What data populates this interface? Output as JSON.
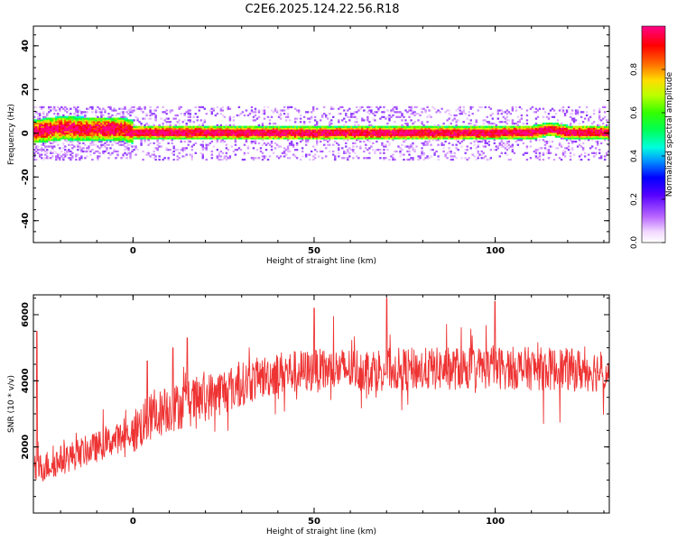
{
  "title": "C2E6.2025.124.22.56.R18",
  "chart_data": [
    {
      "type": "heatmap",
      "xlabel": "Height of straight line (km)",
      "ylabel": "Frequency (Hz)",
      "xlim": [
        -27.5,
        131.5
      ],
      "ylim": [
        -50,
        49
      ],
      "xticks": [
        0,
        50,
        100
      ],
      "yticks": [
        -40,
        -20,
        0,
        20,
        40
      ],
      "band": {
        "center_freq_hz": [
          {
            "x": -27,
            "f": 1.0
          },
          {
            "x": -20,
            "f": 2.5
          },
          {
            "x": -12,
            "f": 2.0
          },
          {
            "x": -3,
            "f": 2.0
          },
          {
            "x": 0,
            "f": 0.5
          },
          {
            "x": 10,
            "f": 0.5
          },
          {
            "x": 30,
            "f": 0.3
          },
          {
            "x": 50,
            "f": 0.2
          },
          {
            "x": 70,
            "f": 0.3
          },
          {
            "x": 90,
            "f": 0.2
          },
          {
            "x": 110,
            "f": 0.5
          },
          {
            "x": 115,
            "f": 2.0
          },
          {
            "x": 120,
            "f": 0.5
          },
          {
            "x": 131,
            "f": 0.5
          }
        ],
        "high_amplitude_core_width_hz": 1.5,
        "spread_hz_max": 12
      },
      "grid": false
    },
    {
      "type": "line",
      "xlabel": "Height of straight line (km)",
      "ylabel": "SNR (10 * v/v)",
      "xlim": [
        -27.5,
        131.5
      ],
      "ylim": [
        0,
        6600
      ],
      "xticks": [
        0,
        50,
        100
      ],
      "yticks": [
        2000,
        4000,
        6000
      ],
      "color": "#ee3333",
      "trend": [
        {
          "x": -27,
          "y": 1300
        },
        {
          "x": -20,
          "y": 1600
        },
        {
          "x": -10,
          "y": 2000
        },
        {
          "x": 0,
          "y": 2450
        },
        {
          "x": 5,
          "y": 2900
        },
        {
          "x": 10,
          "y": 3150
        },
        {
          "x": 15,
          "y": 3300
        },
        {
          "x": 20,
          "y": 3500
        },
        {
          "x": 30,
          "y": 3900
        },
        {
          "x": 40,
          "y": 4250
        },
        {
          "x": 60,
          "y": 4350
        },
        {
          "x": 80,
          "y": 4350
        },
        {
          "x": 100,
          "y": 4400
        },
        {
          "x": 131,
          "y": 4300
        }
      ],
      "noise_amplitude": 650,
      "notable_spikes": [
        {
          "x": -26.5,
          "y": 5500
        },
        {
          "x": 4,
          "y": 4600
        },
        {
          "x": 11,
          "y": 5000
        },
        {
          "x": 15,
          "y": 5300
        },
        {
          "x": 50,
          "y": 6200
        },
        {
          "x": 70,
          "y": 6500
        },
        {
          "x": 100,
          "y": 6400
        }
      ],
      "grid": false
    }
  ],
  "colorbar": {
    "label": "Normalized spectral amplitude",
    "ticks": [
      "0.0",
      "0.2",
      "0.4",
      "0.6",
      "0.8"
    ],
    "range": [
      0,
      1
    ]
  }
}
